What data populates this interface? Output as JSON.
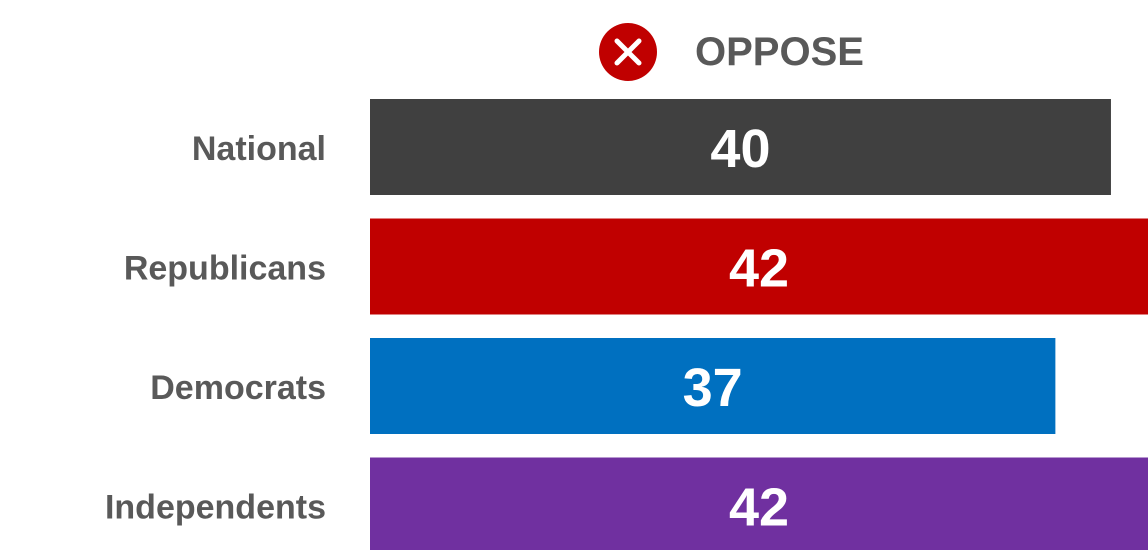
{
  "chart_data": {
    "type": "hbar",
    "title": "OPPOSE",
    "categories": [
      "National",
      "Republicans",
      "Democrats",
      "Independents"
    ],
    "values": [
      40,
      42,
      37,
      42
    ],
    "colors": [
      "#404040",
      "#c00000",
      "#0070c0",
      "#7030a0"
    ],
    "xlim": [
      0,
      42
    ]
  }
}
